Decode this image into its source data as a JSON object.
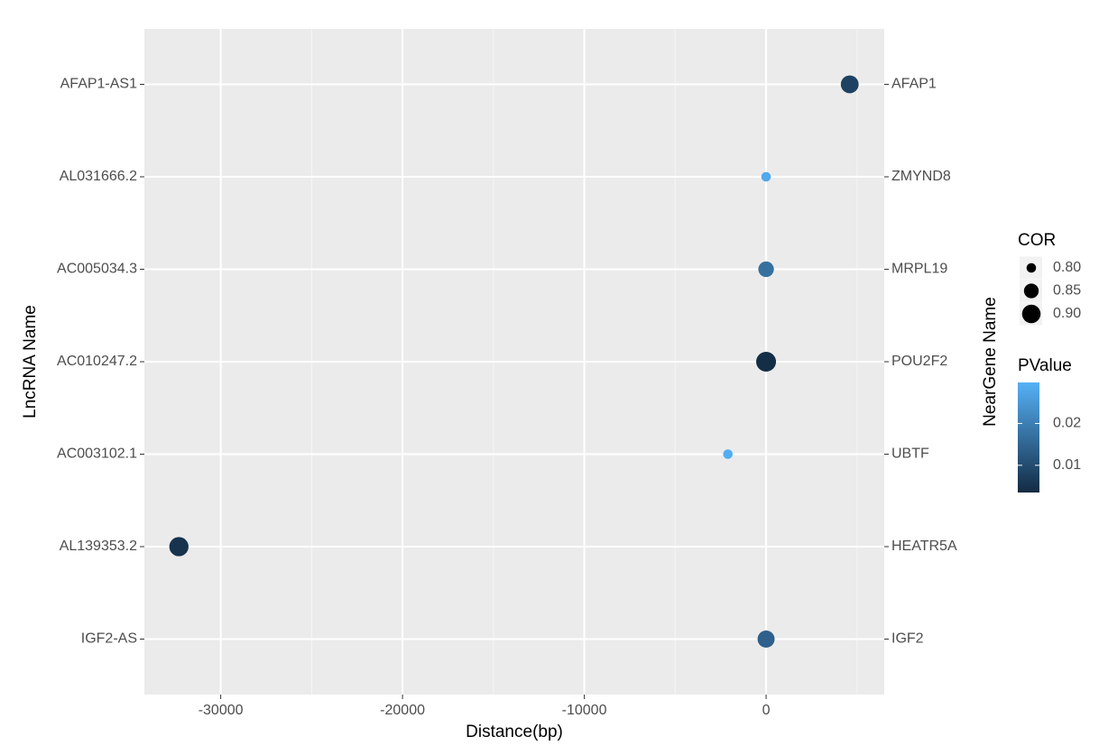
{
  "chart_data": {
    "type": "scatter",
    "x_title": "Distance(bp)",
    "y_title": "LncRNA Name",
    "y2_title": "NearGene Name",
    "categories": [
      "AFAP1-AS1",
      "AL031666.2",
      "AC005034.3",
      "AC010247.2",
      "AC003102.1",
      "AL139353.2",
      "IGF2-AS"
    ],
    "right_categories": [
      "AFAP1",
      "ZMYND8",
      "MRPL19",
      "POU2F2",
      "UBTF",
      "HEATR5A",
      "IGF2"
    ],
    "x": [
      4600,
      0,
      0,
      0,
      -2100,
      -32300,
      0
    ],
    "cor": [
      0.89,
      0.8,
      0.86,
      0.92,
      0.8,
      0.91,
      0.88
    ],
    "pvalue": [
      0.008,
      0.028,
      0.017,
      0.004,
      0.029,
      0.005,
      0.014
    ],
    "xlim": [
      -34200,
      6500
    ],
    "xticks": [
      -30000,
      -20000,
      -10000,
      0
    ],
    "xminor": [
      -25000,
      -15000,
      -5000,
      5000
    ],
    "grid": true,
    "size_title": "COR",
    "size_lim": [
      0.79,
      0.92
    ],
    "size_breaks": [
      {
        "value": 0.8,
        "label": "0.80"
      },
      {
        "value": 0.85,
        "label": "0.85"
      },
      {
        "value": 0.9,
        "label": "0.90"
      }
    ],
    "color_title": "PValue",
    "color_lim": [
      0.0035,
      0.0298
    ],
    "color_ticks": [
      0.02,
      0.01
    ],
    "color_low": "#132B43",
    "color_high": "#56B1F7",
    "point_legend_color": "#000000"
  }
}
